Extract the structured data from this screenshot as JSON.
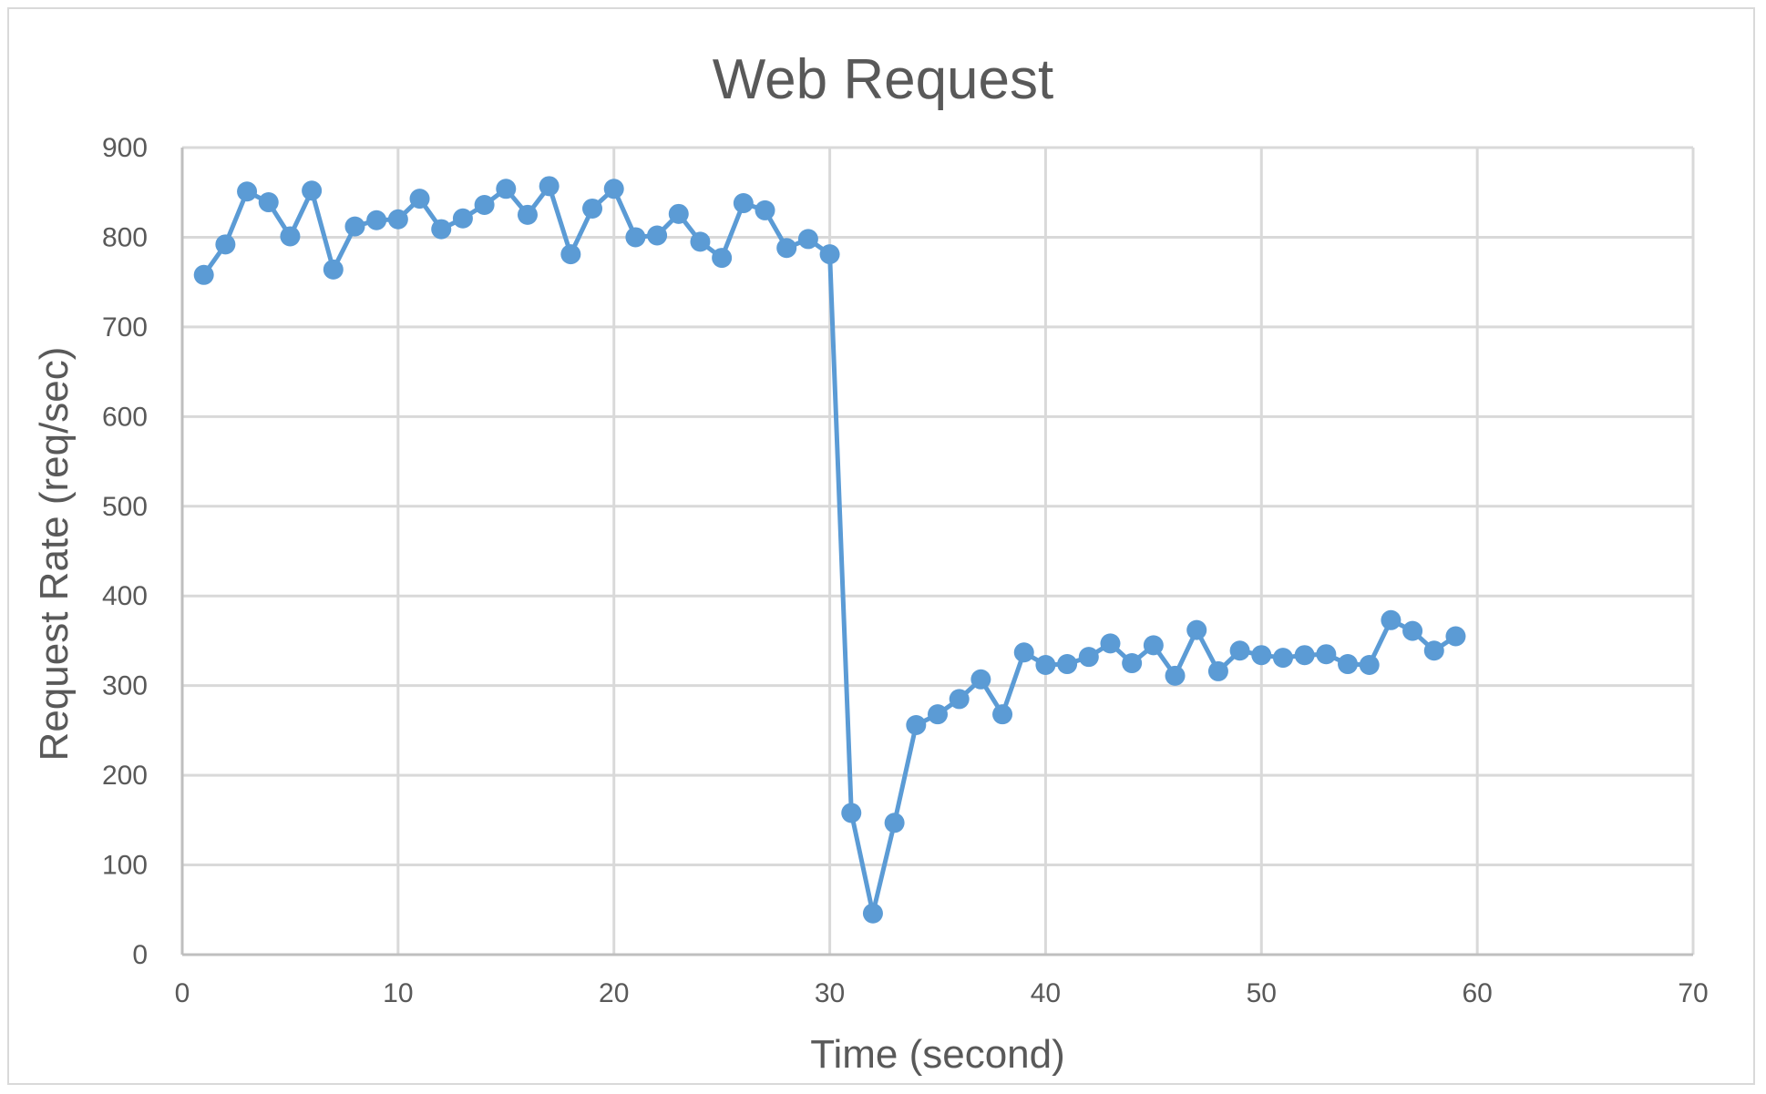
{
  "chart_data": {
    "type": "line",
    "title": "Web Request",
    "xlabel": "Time (second)",
    "ylabel": "Request Rate (req/sec)",
    "xlim": [
      0,
      70
    ],
    "ylim": [
      0,
      900
    ],
    "x_ticks": [
      0,
      10,
      20,
      30,
      40,
      50,
      60,
      70
    ],
    "y_ticks": [
      0,
      100,
      200,
      300,
      400,
      500,
      600,
      700,
      800,
      900
    ],
    "grid": true,
    "legend": "none",
    "series_color": "#5b9bd5",
    "series": [
      {
        "x": [
          1,
          2,
          3,
          4,
          5,
          6,
          7,
          8,
          9,
          10,
          11,
          12,
          13,
          14,
          15,
          16,
          17,
          18,
          19,
          20,
          21,
          22,
          23,
          24,
          25,
          26,
          27,
          28,
          29,
          30,
          31,
          32,
          33,
          34,
          35,
          36,
          37,
          38,
          39,
          40,
          41,
          42,
          43,
          44,
          45,
          46,
          47,
          48,
          49,
          50,
          51,
          52,
          53,
          54,
          55,
          56,
          57,
          58,
          59
        ],
        "values": [
          758,
          792,
          851,
          839,
          801,
          852,
          764,
          812,
          819,
          820,
          843,
          809,
          821,
          836,
          854,
          825,
          857,
          781,
          832,
          854,
          800,
          802,
          826,
          795,
          777,
          838,
          830,
          788,
          798,
          781,
          158,
          46,
          147,
          256,
          268,
          285,
          307,
          268,
          337,
          323,
          324,
          332,
          347,
          325,
          345,
          311,
          362,
          316,
          339,
          334,
          331,
          334,
          335,
          324,
          323,
          373,
          361,
          339,
          355
        ]
      }
    ]
  }
}
